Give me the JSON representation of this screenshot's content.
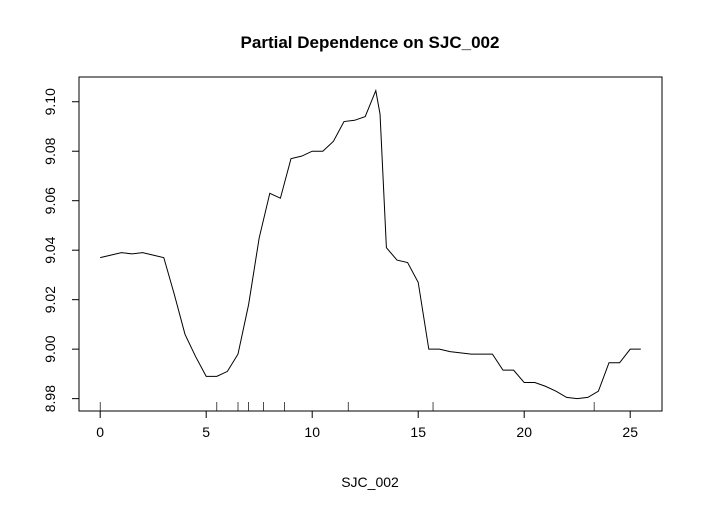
{
  "chart_data": {
    "type": "line",
    "title": "Partial Dependence on SJC_002",
    "xlabel": "SJC_002",
    "ylabel": "",
    "xlim": [
      -1.0,
      26.5
    ],
    "ylim": [
      8.975,
      9.11
    ],
    "x_ticks": [
      0,
      5,
      10,
      15,
      20,
      25
    ],
    "x_tick_labels": [
      "0",
      "5",
      "10",
      "15",
      "20",
      "25"
    ],
    "y_ticks": [
      8.98,
      9.0,
      9.02,
      9.04,
      9.06,
      9.08,
      9.1
    ],
    "y_tick_labels": [
      "8.98",
      "9.00",
      "9.02",
      "9.04",
      "9.06",
      "9.08",
      "9.10"
    ],
    "grid": false,
    "rug": [
      0,
      5.5,
      6.5,
      7.0,
      7.7,
      8.7,
      11.7,
      15.7,
      23.3
    ],
    "series": [
      {
        "x": [
          0.0,
          0.5,
          1.0,
          1.5,
          2.0,
          2.5,
          3.0,
          3.5,
          4.0,
          4.5,
          5.0,
          5.5,
          6.0,
          6.5,
          7.0,
          7.5,
          8.0,
          8.5,
          9.0,
          9.5,
          10.0,
          10.5,
          11.0,
          11.5,
          12.0,
          12.5,
          13.0,
          13.2,
          13.5,
          14.0,
          14.5,
          15.0,
          15.5,
          16.0,
          16.5,
          17.0,
          17.5,
          18.0,
          18.5,
          19.0,
          19.5,
          20.0,
          20.5,
          21.0,
          21.5,
          22.0,
          22.5,
          23.0,
          23.5,
          24.0,
          24.5,
          25.0,
          25.5
        ],
        "y": [
          9.037,
          9.038,
          9.039,
          9.0385,
          9.039,
          9.038,
          9.037,
          9.022,
          9.006,
          8.997,
          8.989,
          8.989,
          8.991,
          8.998,
          9.018,
          9.045,
          9.063,
          9.061,
          9.077,
          9.078,
          9.08,
          9.08,
          9.084,
          9.092,
          9.0925,
          9.094,
          9.1045,
          9.095,
          9.041,
          9.036,
          9.035,
          9.027,
          9.0,
          9.0,
          8.999,
          8.9985,
          8.998,
          8.998,
          8.998,
          8.9915,
          8.9915,
          8.9865,
          8.9865,
          8.985,
          8.983,
          8.9805,
          8.98,
          8.9805,
          8.983,
          8.9945,
          8.9945,
          9.0,
          9.0
        ]
      }
    ]
  }
}
